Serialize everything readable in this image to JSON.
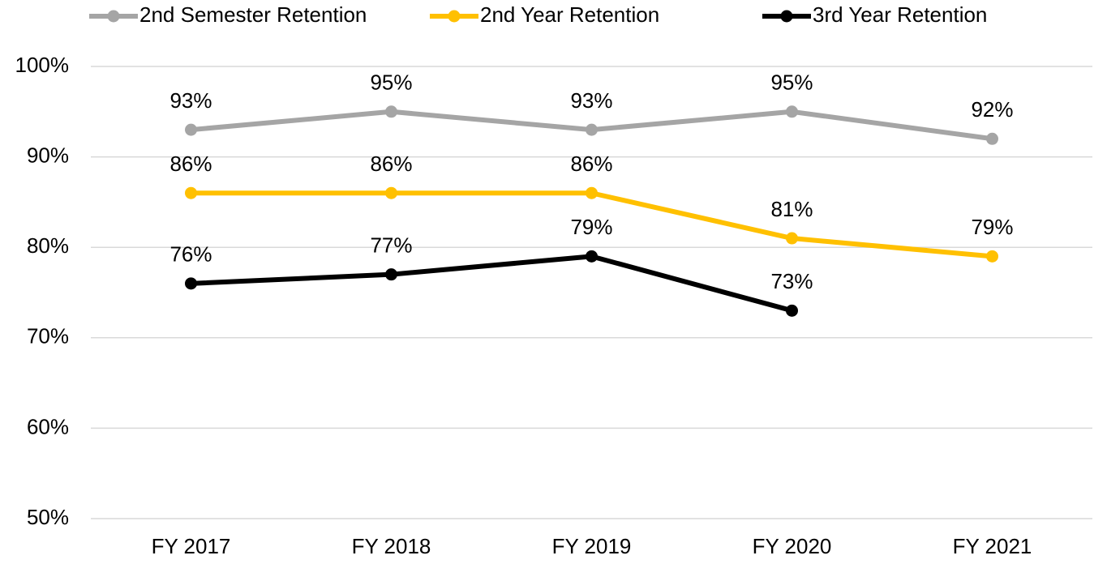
{
  "chart_data": {
    "type": "line",
    "categories": [
      "FY 2017",
      "FY 2018",
      "FY 2019",
      "FY 2020",
      "FY 2021"
    ],
    "series": [
      {
        "name": "2nd Semester Retention",
        "color": "#a5a5a5",
        "values": [
          93,
          95,
          93,
          95,
          92
        ],
        "value_labels": [
          "93%",
          "95%",
          "93%",
          "95%",
          "92%"
        ]
      },
      {
        "name": "2nd Year Retention",
        "color": "#ffc000",
        "values": [
          86,
          86,
          86,
          81,
          79
        ],
        "value_labels": [
          "86%",
          "86%",
          "86%",
          "81%",
          "79%"
        ]
      },
      {
        "name": "3rd Year Retention",
        "color": "#000000",
        "values": [
          76,
          77,
          79,
          73,
          null
        ],
        "value_labels": [
          "76%",
          "77%",
          "79%",
          "73%",
          null
        ]
      }
    ],
    "ylim": [
      50,
      100
    ],
    "yticks": [
      {
        "value": 50,
        "label": "50%"
      },
      {
        "value": 60,
        "label": "60%"
      },
      {
        "value": 70,
        "label": "70%"
      },
      {
        "value": 80,
        "label": "80%"
      },
      {
        "value": 90,
        "label": "90%"
      },
      {
        "value": 100,
        "label": "100%"
      }
    ],
    "grid": true,
    "legend": "top"
  }
}
